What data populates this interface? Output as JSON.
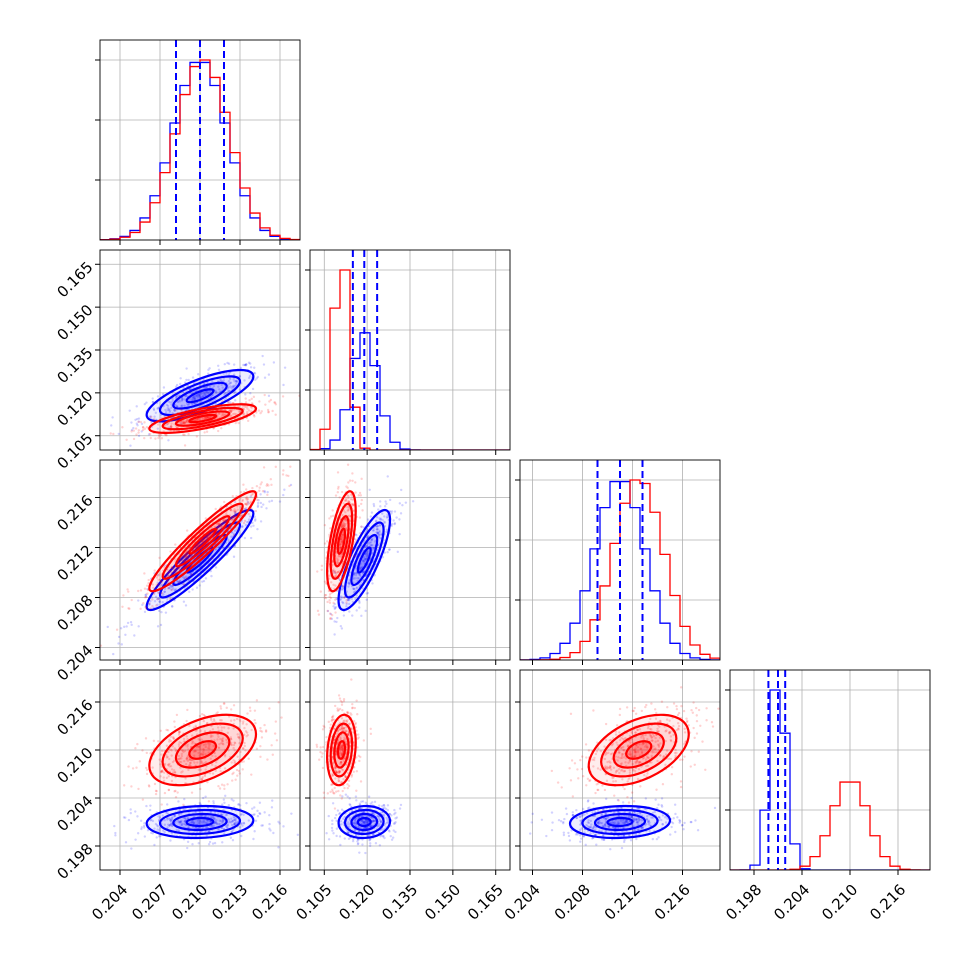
{
  "chart_data": {
    "type": "corner",
    "params": [
      {
        "ticks": [
          0.204,
          0.207,
          0.21,
          0.213,
          0.216
        ],
        "tick_labels": [
          "0.204",
          "0.207",
          "0.210",
          "0.213",
          "0.216"
        ],
        "range": [
          0.2025,
          0.2175
        ]
      },
      {
        "ticks": [
          0.105,
          0.12,
          0.135,
          0.15,
          0.165
        ],
        "tick_labels": [
          "0.105",
          "0.120",
          "0.135",
          "0.150",
          "0.165"
        ],
        "range": [
          0.1,
          0.17
        ]
      },
      {
        "ticks": [
          0.204,
          0.208,
          0.212,
          0.216
        ],
        "tick_labels": [
          "0.204",
          "0.208",
          "0.212",
          "0.216"
        ],
        "range": [
          0.203,
          0.219
        ]
      },
      {
        "ticks": [
          0.198,
          0.204,
          0.21,
          0.216
        ],
        "tick_labels": [
          "0.198",
          "0.204",
          "0.210",
          "0.216"
        ],
        "range": [
          0.195,
          0.22
        ]
      }
    ],
    "series": [
      {
        "color": "#0000ff",
        "mean": [
          0.21,
          0.119,
          0.211,
          0.201
        ],
        "std": [
          0.002,
          0.0045,
          0.002,
          0.001
        ],
        "quantiles": [
          [
            0.2082,
            0.21,
            0.2118
          ],
          [
            0.115,
            0.119,
            0.1235
          ],
          [
            0.2092,
            0.211,
            0.2128
          ],
          [
            0.1998,
            0.201,
            0.2019
          ]
        ],
        "corr": [
          [
            1.0,
            0.75,
            0.93,
            0.1
          ],
          [
            0.75,
            1.0,
            0.8,
            0.05
          ],
          [
            0.93,
            0.8,
            1.0,
            0.1
          ],
          [
            0.1,
            0.05,
            0.1,
            1.0
          ]
        ]
      },
      {
        "color": "#ff0000",
        "mean": [
          0.2102,
          0.111,
          0.2125,
          0.21
        ],
        "std": [
          0.002,
          0.0025,
          0.002,
          0.0022
        ],
        "corr": [
          [
            1.0,
            0.7,
            0.94,
            0.45
          ],
          [
            0.7,
            1.0,
            0.6,
            0.2
          ],
          [
            0.94,
            0.6,
            1.0,
            0.45
          ],
          [
            0.45,
            0.2,
            0.45,
            1.0
          ]
        ]
      }
    ],
    "grid": true
  }
}
